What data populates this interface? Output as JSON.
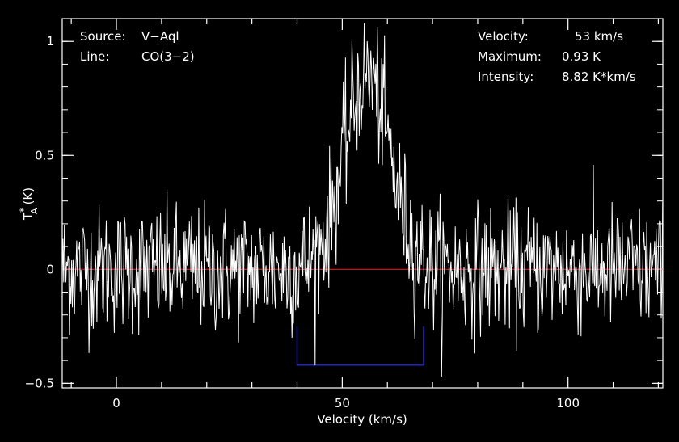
{
  "chart_data": {
    "type": "line",
    "title": "",
    "xlabel": "Velocity (km/s)",
    "ylabel": "T",
    "ylabel_sup": "*",
    "ylabel_sub": "A",
    "ylabel_unit": "(K)",
    "xlim": [
      -12,
      121
    ],
    "ylim": [
      -0.52,
      1.1
    ],
    "x_ticks": [
      0,
      50,
      100
    ],
    "x_tick_labels": [
      "0",
      "50",
      "100"
    ],
    "y_ticks": [
      -0.5,
      0,
      0.5,
      1
    ],
    "y_tick_labels": [
      "−0.5",
      "0",
      "0.5",
      "1"
    ],
    "baseline": 0,
    "integration_window": [
      40,
      68
    ],
    "window_level": -0.42,
    "series": [
      {
        "color": "#ffffff",
        "profile": {
          "center": 55.5,
          "fwhm": 12,
          "peak": 0.85,
          "noise": 0.14,
          "step": 0.16
        }
      }
    ],
    "annotations_left": [
      {
        "label": "Source:",
        "value": "V−Aql"
      },
      {
        "label": "Line:",
        "value": "CO(3−2)"
      }
    ],
    "annotations_right": [
      {
        "label": "Velocity:",
        "value": "53 km/s"
      },
      {
        "label": "Maximum:",
        "value": "0.93 K"
      },
      {
        "label": "Intensity:",
        "value": "8.82 K*km/s"
      }
    ],
    "colors": {
      "baseline": "#cc2222",
      "window": "#2222dd",
      "frame": "#ffffff",
      "trace": "#ffffff",
      "background": "#000000"
    }
  }
}
